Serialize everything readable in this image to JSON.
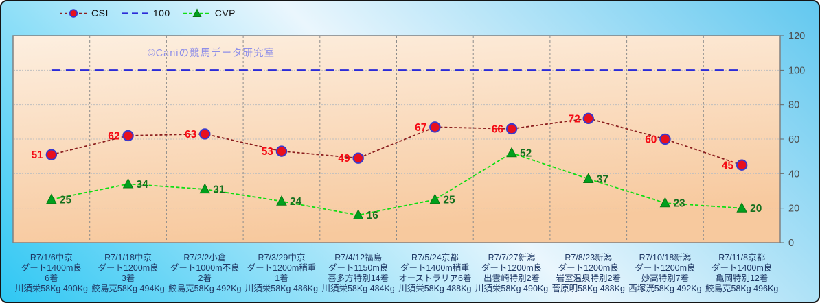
{
  "watermark": "©Caniの競馬データ研究室",
  "legend": {
    "items": [
      {
        "id": "csi",
        "label": "CSI",
        "line_color": "#8B1E1E",
        "dash": "4,3",
        "marker": "circle",
        "marker_fill": "#E8101E",
        "marker_stroke": "#3939CE"
      },
      {
        "id": "100",
        "label": "100",
        "line_color": "#2B2BD8",
        "dash": "9,6",
        "marker": "none"
      },
      {
        "id": "cvp",
        "label": "CVP",
        "line_color": "#0FDE12",
        "dash": "5,3",
        "marker": "triangle",
        "marker_fill": "#00A01E",
        "marker_stroke": "#0A7A12"
      }
    ]
  },
  "chart_data": {
    "type": "line",
    "ylim": [
      0,
      120
    ],
    "yticks": [
      0,
      20,
      40,
      60,
      80,
      100,
      120
    ],
    "y_axis_side": "right",
    "grid": true,
    "legend_position": "top-left",
    "categories": [
      [
        "R7/1/6中京",
        "ダート1400m良",
        "6着",
        "川須栄58Kg 490Kg"
      ],
      [
        "R7/1/18中京",
        "ダート1200m良",
        "3着",
        "鮫島克58Kg 494Kg"
      ],
      [
        "R7/2/2小倉",
        "ダート1000m不良",
        "2着",
        "鮫島克58Kg 492Kg"
      ],
      [
        "R7/3/29中京",
        "ダート1200m稍重",
        "1着",
        "川須栄58Kg 486Kg"
      ],
      [
        "R7/4/12福島",
        "ダート1150m良",
        "喜多方特別14着",
        "川須栄58Kg 484Kg"
      ],
      [
        "R7/5/24京都",
        "ダート1400m稍重",
        "オーストラリア6着",
        "川須栄58Kg 488Kg"
      ],
      [
        "R7/7/27新潟",
        "ダート1200m良",
        "出雲崎特別2着",
        "川須栄58Kg 490Kg"
      ],
      [
        "R7/8/23新潟",
        "ダート1200m良",
        "岩室温泉特別2着",
        "菅原明58Kg 488Kg"
      ],
      [
        "R7/10/18新潟",
        "ダート1200m良",
        "妙高特別7着",
        "西塚洸58Kg 492Kg"
      ],
      [
        "R7/11/8京都",
        "ダート1400m良",
        "亀岡特別12着",
        "鮫島克58Kg 496Kg"
      ]
    ],
    "series": [
      {
        "name": "CSI",
        "values": [
          51,
          62,
          63,
          53,
          49,
          67,
          66,
          72,
          60,
          45
        ],
        "line_color": "#8B1E1E",
        "line_width": 1.8,
        "dash": "4,3",
        "marker": "circle",
        "marker_fill": "#E8101E",
        "marker_stroke": "#3939CE",
        "marker_size": 7.2,
        "label_color": "#F50A14",
        "label_side": "left",
        "show_labels": true
      },
      {
        "name": "100",
        "values": [
          100,
          100,
          100,
          100,
          100,
          100,
          100,
          100,
          100,
          100
        ],
        "line_color": "#2B2BD8",
        "line_width": 2.4,
        "dash": "13,8",
        "marker": "none",
        "show_labels": false
      },
      {
        "name": "CVP",
        "values": [
          25,
          34,
          31,
          24,
          16,
          25,
          52,
          37,
          23,
          20
        ],
        "line_color": "#0FDE12",
        "line_width": 1.8,
        "dash": "5,3",
        "marker": "triangle",
        "marker_fill": "#00A01E",
        "marker_stroke": "#0A7A12",
        "marker_size": 7.5,
        "label_color": "#156F1E",
        "label_side": "right",
        "show_labels": true
      }
    ],
    "colors": {
      "plot_bg_top": "#FDEFE0",
      "plot_bg_bottom": "#F7C99E",
      "plot_border": "#808080",
      "grid_color": "#BFBFBF",
      "separator_color": "#8C8C8C",
      "tick_color": "#666666",
      "tick_label_color": "#4D4D4D",
      "category_label_color": "#1F3864",
      "bg_corner_bl": "#2FC7F3",
      "bg_mid": "#EAF6FD",
      "bg_corner_tr": "#62C8EF",
      "watermark_color": "#8F8FE8"
    }
  }
}
